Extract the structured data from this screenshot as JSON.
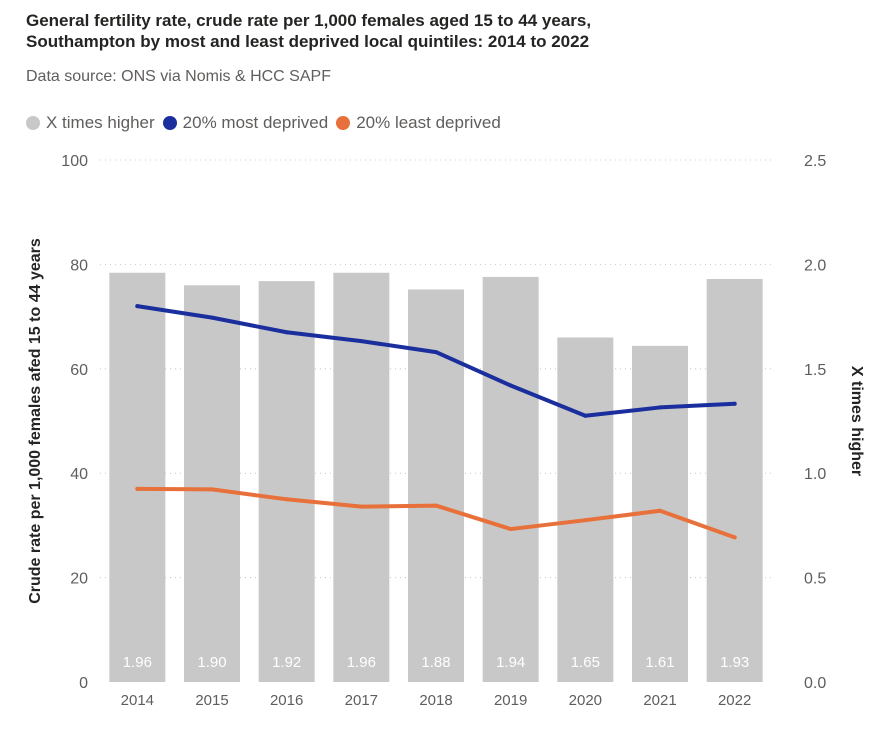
{
  "title_line1": "General fertility rate, crude rate per 1,000 females aged 15 to 44 years,",
  "title_line2": "Southampton by most and least deprived local quintiles: 2014 to 2022",
  "subtitle": "Data source: ONS via Nomis & HCC SAPF",
  "colors": {
    "bars": "#c8c8c8",
    "most_deprived": "#1b2e9e",
    "least_deprived": "#e8703a",
    "bar_label": "#ffffff",
    "axis_text": "#605e5c",
    "grid": "#c8c8c8"
  },
  "chart_data": {
    "type": "bar+line",
    "categories": [
      "2014",
      "2015",
      "2016",
      "2017",
      "2018",
      "2019",
      "2020",
      "2021",
      "2022"
    ],
    "series": [
      {
        "name": "X times higher",
        "type": "bar",
        "axis": "right",
        "values": [
          1.96,
          1.9,
          1.92,
          1.96,
          1.88,
          1.94,
          1.65,
          1.61,
          1.93
        ],
        "labels": [
          "1.96",
          "1.90",
          "1.92",
          "1.96",
          "1.88",
          "1.94",
          "1.65",
          "1.61",
          "1.93"
        ]
      },
      {
        "name": "20% most deprived",
        "type": "line",
        "axis": "left",
        "values": [
          72.0,
          69.8,
          67.0,
          65.3,
          63.2,
          56.8,
          51.0,
          52.6,
          53.3
        ]
      },
      {
        "name": "20% least deprived",
        "type": "line",
        "axis": "left",
        "values": [
          37.0,
          36.9,
          35.0,
          33.6,
          33.8,
          29.3,
          31.0,
          32.8,
          27.7
        ]
      }
    ],
    "y_left": {
      "label": "Crude rate per 1,000 females afed 15 to 44 years",
      "min": 0,
      "max": 100,
      "ticks": [
        "0",
        "20",
        "40",
        "60",
        "80",
        "100"
      ]
    },
    "y_right": {
      "label": "X times higher",
      "min": 0,
      "max": 2.5,
      "ticks": [
        "0.0",
        "0.5",
        "1.0",
        "1.5",
        "2.0",
        "2.5"
      ]
    },
    "grid": true,
    "legend_position": "top-left"
  }
}
